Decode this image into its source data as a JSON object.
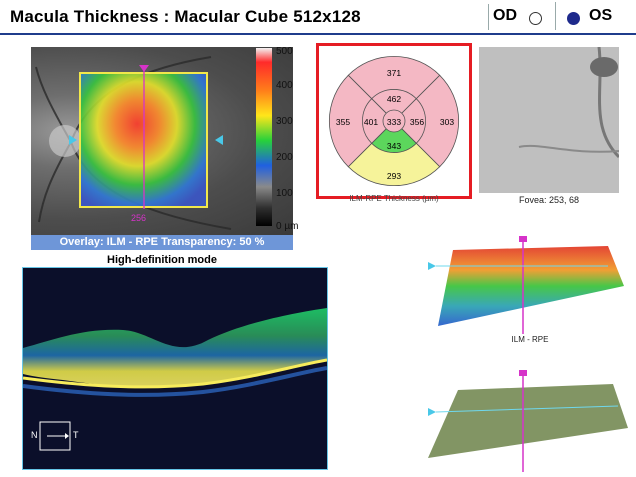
{
  "header": {
    "title": "Macula Thickness : Macular Cube 512x128",
    "od_label": "OD",
    "os_label": "OS",
    "selected_eye": "OS"
  },
  "fundus": {
    "line_label": "256",
    "overlay_bar": "Overlay: ILM - RPE  Transparency: 50 %",
    "scale_labels": [
      "500",
      "400",
      "300",
      "200",
      "100",
      "0 µm"
    ]
  },
  "hd_mode": "High-definition mode",
  "thickness_map": {
    "sectors": {
      "outer_superior": "371",
      "outer_nasal": "355",
      "outer_temporal": "303",
      "outer_inferior": "293",
      "inner_superior": "462",
      "inner_nasal": "401",
      "inner_temporal": "356",
      "inner_inferior": "343",
      "center": "333"
    },
    "caption": "ILM-RPE Thickness (µm)"
  },
  "fovea": {
    "caption": "Fovea: 253, 68"
  },
  "surface_3d": {
    "label": "ILM - RPE"
  },
  "bscan": {
    "orientation_n": "N",
    "orientation_t": "T"
  },
  "colors": {
    "header_rule": "#1f3c8c",
    "highlight_border": "#e51c23",
    "overlay_bar": "#6e96d8",
    "sector_pink": "#f4b8c4",
    "sector_green": "#5cd65c",
    "sector_yellow": "#f6f39a",
    "scan_line_magenta": "#d633c9"
  }
}
